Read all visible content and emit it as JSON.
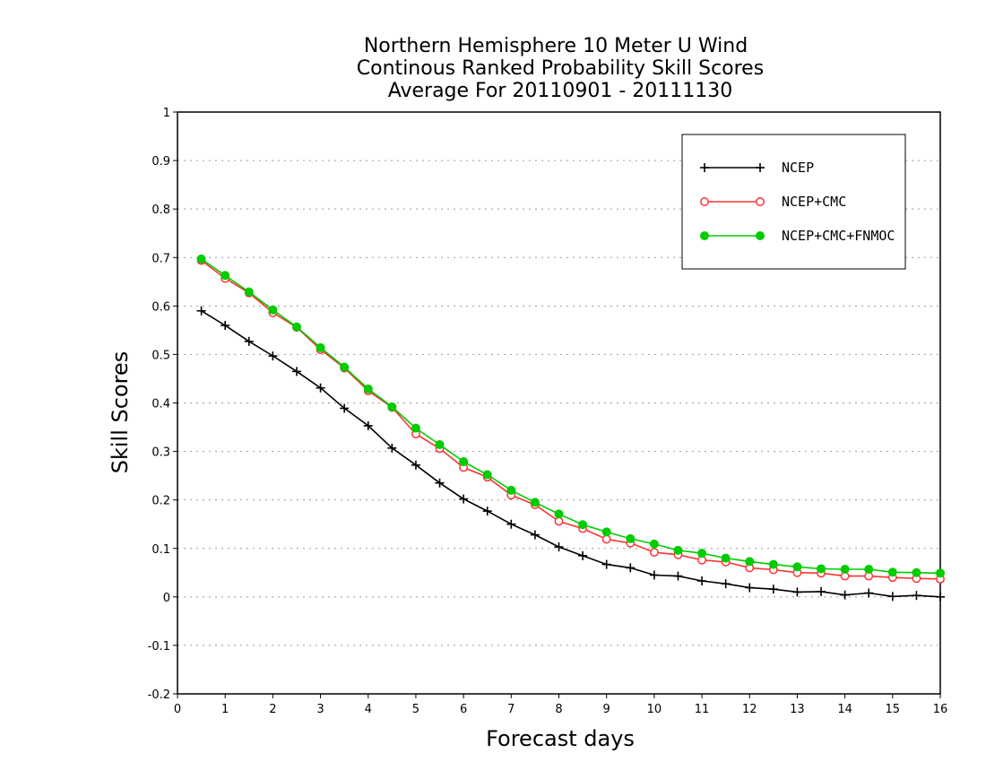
{
  "chart_data": {
    "type": "line",
    "title": "Northern Hemisphere 10 Meter U Wind",
    "subtitle": "Continous Ranked Probability Skill Scores",
    "subtitle2": "Average For 20110901 - 20111130",
    "xlabel": "Forecast days",
    "ylabel": "Skill Scores",
    "xlim": [
      0,
      16
    ],
    "ylim": [
      -0.2,
      1
    ],
    "xticks": [
      0,
      1,
      2,
      3,
      4,
      5,
      6,
      7,
      8,
      9,
      10,
      11,
      12,
      13,
      14,
      15,
      16
    ],
    "xtick_labels": [
      "0",
      "1",
      "2",
      "3",
      "4",
      "5",
      "6",
      "7",
      "8",
      "9",
      "10",
      "11",
      "12",
      "13",
      "14",
      "15",
      "16"
    ],
    "yticks": [
      -0.2,
      -0.1,
      0,
      0.1,
      0.2,
      0.3,
      0.4,
      0.5,
      0.6,
      0.7,
      0.8,
      0.9,
      1
    ],
    "ytick_labels": [
      "-0.2",
      "-0.1",
      "0",
      "0.1",
      "0.2",
      "0.3",
      "0.4",
      "0.5",
      "0.6",
      "0.7",
      "0.8",
      "0.9",
      "1"
    ],
    "grid": "horizontal dotted",
    "legend_position": "top-right",
    "x": [
      0.5,
      1,
      1.5,
      2,
      2.5,
      3,
      3.5,
      4,
      4.5,
      5,
      5.5,
      6,
      6.5,
      7,
      7.5,
      8,
      8.5,
      9,
      9.5,
      10,
      10.5,
      11,
      11.5,
      12,
      12.5,
      13,
      13.5,
      14,
      14.5,
      15,
      15.5,
      16
    ],
    "series": [
      {
        "name": "NCEP",
        "color": "#000000",
        "marker": "plus",
        "values": [
          0.59,
          0.56,
          0.527,
          0.497,
          0.465,
          0.431,
          0.389,
          0.353,
          0.307,
          0.272,
          0.235,
          0.202,
          0.177,
          0.15,
          0.128,
          0.103,
          0.085,
          0.067,
          0.06,
          0.045,
          0.043,
          0.033,
          0.027,
          0.019,
          0.016,
          0.01,
          0.011,
          0.004,
          0.008,
          0.001,
          0.003,
          0.0
        ]
      },
      {
        "name": "NCEP+CMC",
        "color": "#ff3333",
        "marker": "circle-open",
        "values": [
          0.694,
          0.657,
          0.627,
          0.586,
          0.556,
          0.51,
          0.472,
          0.425,
          0.391,
          0.336,
          0.306,
          0.267,
          0.247,
          0.21,
          0.19,
          0.156,
          0.141,
          0.119,
          0.111,
          0.092,
          0.087,
          0.076,
          0.072,
          0.06,
          0.056,
          0.05,
          0.049,
          0.043,
          0.043,
          0.04,
          0.038,
          0.037
        ]
      },
      {
        "name": "NCEP+CMC+FNMOC",
        "color": "#00cc00",
        "marker": "circle-filled",
        "values": [
          0.697,
          0.663,
          0.629,
          0.592,
          0.557,
          0.514,
          0.474,
          0.429,
          0.392,
          0.348,
          0.314,
          0.279,
          0.252,
          0.22,
          0.195,
          0.171,
          0.149,
          0.134,
          0.12,
          0.109,
          0.096,
          0.09,
          0.08,
          0.073,
          0.067,
          0.062,
          0.058,
          0.057,
          0.057,
          0.051,
          0.05,
          0.049
        ]
      }
    ]
  }
}
